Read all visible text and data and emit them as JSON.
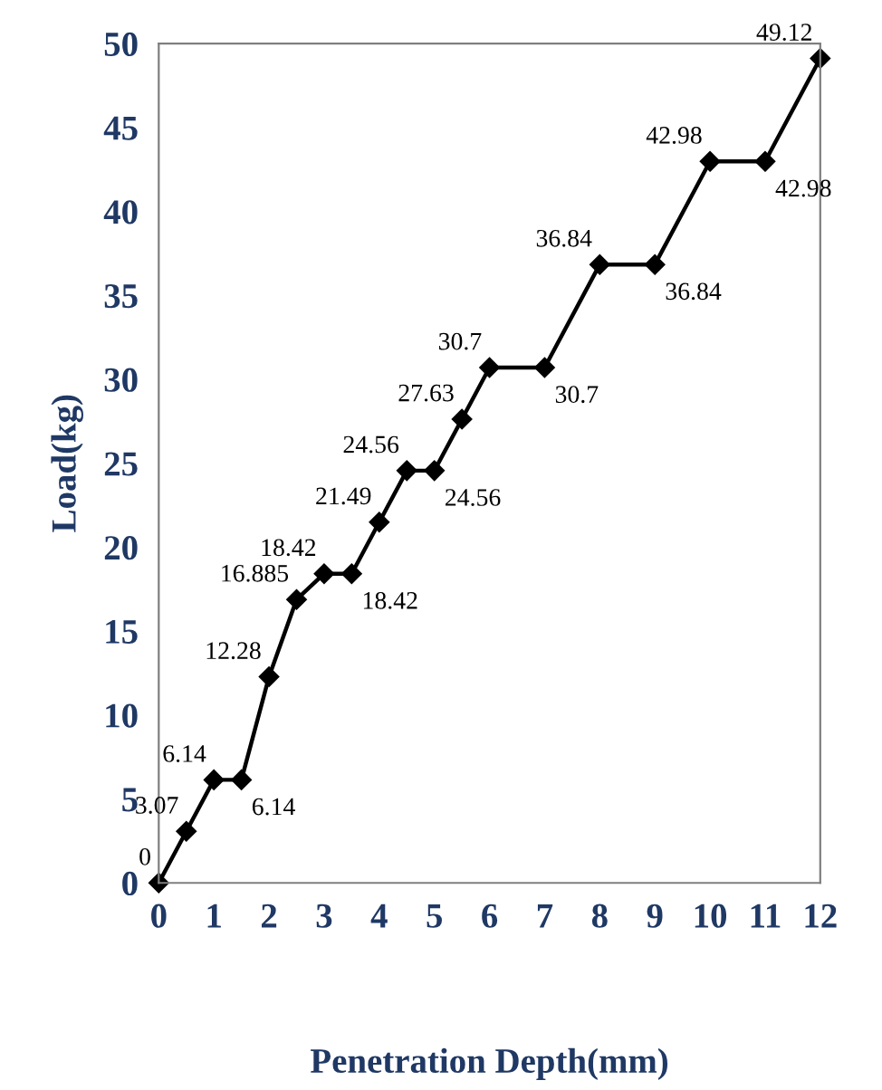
{
  "chart_data": {
    "type": "line",
    "xlabel": "Penetration Depth(mm)",
    "ylabel": "Load(kg)",
    "x": [
      0,
      0.5,
      1,
      1.5,
      2,
      2.5,
      3,
      3.5,
      4,
      4.5,
      5,
      5.5,
      6,
      7,
      8,
      9,
      10,
      11,
      12
    ],
    "series": [
      {
        "color": "#000000",
        "values": [
          0,
          3.07,
          6.14,
          6.14,
          12.28,
          16.885,
          18.42,
          18.42,
          21.49,
          24.56,
          24.56,
          27.63,
          30.7,
          30.7,
          36.84,
          36.84,
          42.98,
          42.98,
          49.12
        ]
      }
    ],
    "data_labels": true,
    "marker": "diamond",
    "line_style": "solid",
    "grid": false,
    "legend": false,
    "xlim": [
      0,
      12
    ],
    "xticks": [
      0,
      1,
      2,
      3,
      4,
      5,
      6,
      7,
      8,
      9,
      10,
      11,
      12
    ],
    "ylim": [
      0,
      50
    ],
    "yticks": [
      0,
      5,
      10,
      15,
      20,
      25,
      30,
      35,
      40,
      45,
      50
    ]
  }
}
